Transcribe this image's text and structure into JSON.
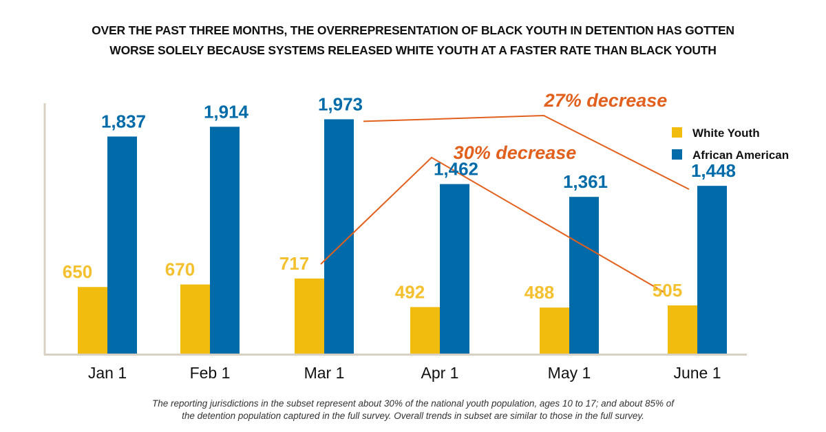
{
  "title_lines": [
    "OVER THE PAST THREE MONTHS, THE OVERREPRESENTATION OF BLACK YOUTH IN DETENTION HAS GOTTEN",
    "WORSE SOLELY BECAUSE SYSTEMS RELEASED WHITE YOUTH AT A FASTER RATE THAN BLACK YOUTH"
  ],
  "footnote_lines": [
    "The reporting jurisdictions in the subset represent about 30% of the national youth population, ages 10 to 17; and about 85% of",
    "the detention population captured in the full survey. Overall trends in subset are similar to those in the full survey."
  ],
  "colors": {
    "white_youth": "#F2BC0F",
    "african_american": "#006BA8",
    "white_label": "#F4C02E",
    "annotation": "#E2601D",
    "axis": "#D9D0C4"
  },
  "chart_data": {
    "type": "bar",
    "title": "OVER THE PAST THREE MONTHS, THE OVERREPRESENTATION OF BLACK YOUTH IN DETENTION HAS GOTTEN WORSE SOLELY BECAUSE SYSTEMS RELEASED WHITE YOUTH AT A FASTER RATE THAN BLACK YOUTH",
    "xlabel": "",
    "ylabel": "",
    "categories": [
      "Jan 1",
      "Feb 1",
      "Mar 1",
      "Apr 1",
      "May 1",
      "June 1"
    ],
    "series": [
      {
        "name": "White Youth",
        "values": [
          650,
          670,
          717,
          492,
          488,
          505
        ],
        "labels": [
          "650",
          "670",
          "717",
          "492",
          "488",
          "505"
        ]
      },
      {
        "name": "African American",
        "values": [
          1837,
          1914,
          1973,
          1462,
          1361,
          1448
        ],
        "labels": [
          "1,837",
          "1,914",
          "1,973",
          "1,462",
          "1,361",
          "1,448"
        ]
      }
    ],
    "ylim": [
      125,
      2100
    ],
    "grid": false,
    "y_ticks_shown": false,
    "legend": {
      "position": "right",
      "entries": [
        "White Youth",
        "African American"
      ]
    },
    "annotations": [
      {
        "text": "27% decrease",
        "from": "African American, Mar 1",
        "to": "African American, June 1"
      },
      {
        "text": "30% decrease",
        "from": "White Youth, Mar 1",
        "to": "White Youth, June 1"
      }
    ]
  }
}
